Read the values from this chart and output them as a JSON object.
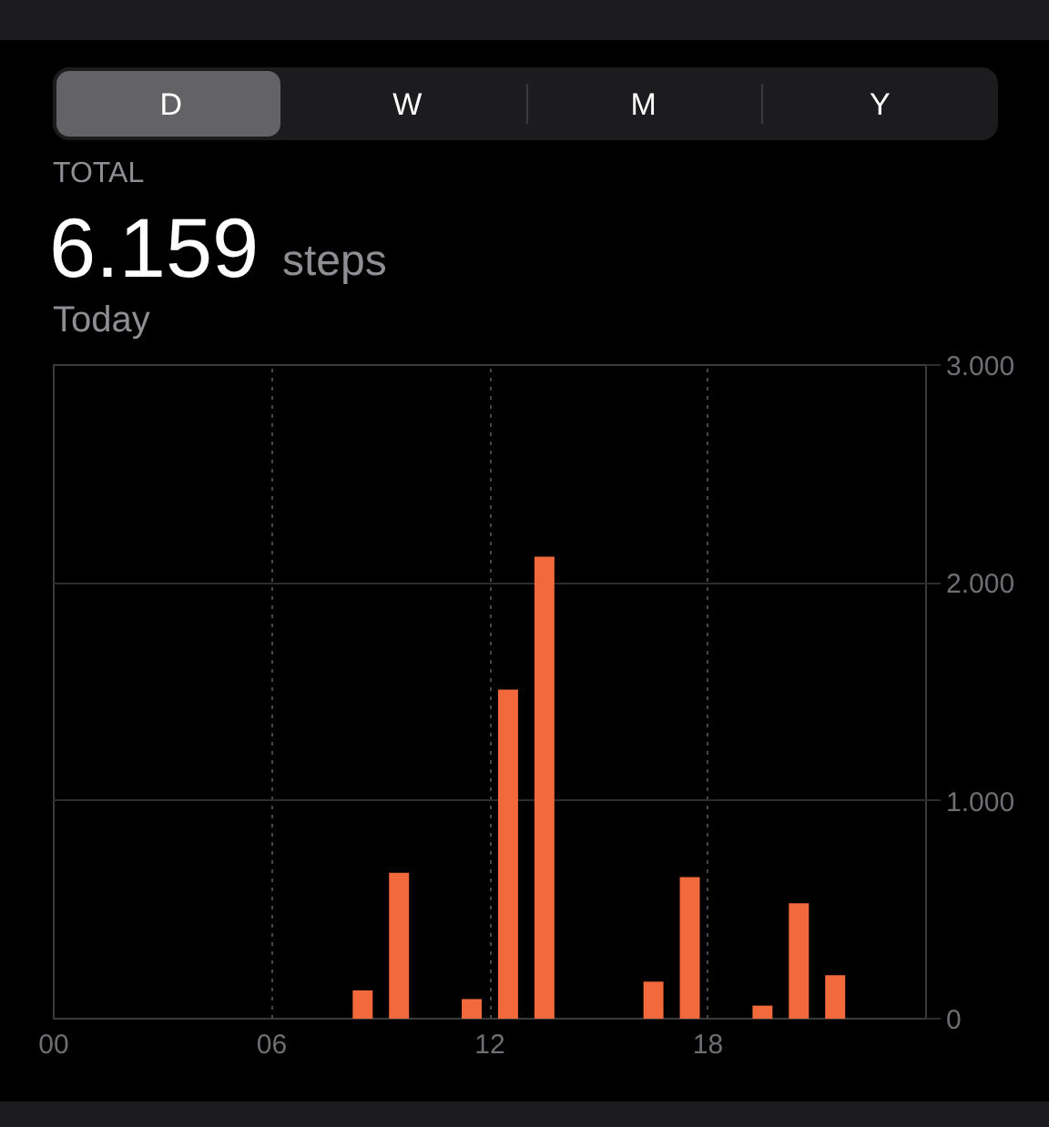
{
  "chart_data": {
    "type": "bar",
    "title": "6.159",
    "subtitle": "Today",
    "annotations": [
      "D",
      "W",
      "M",
      "Y",
      "TOTAL",
      "steps"
    ],
    "x": [
      8.5,
      9.5,
      11.5,
      12.5,
      13.5,
      16.5,
      17.5,
      19.5,
      20.5,
      21.5
    ],
    "values": [
      130,
      670,
      90,
      1510,
      2120,
      170,
      650,
      60,
      530,
      200
    ],
    "color": "#f26a3b",
    "xlim": [
      0,
      24
    ],
    "xticks": [
      {
        "value": 0,
        "label": "00"
      },
      {
        "value": 6,
        "label": "06"
      },
      {
        "value": 12,
        "label": "12"
      },
      {
        "value": 18,
        "label": "18"
      }
    ],
    "ylim": [
      0,
      3000
    ],
    "yticks": [
      0,
      {
        "value": 1000,
        "label": "1.000"
      },
      {
        "value": 2000,
        "label": "2.000"
      },
      {
        "value": 3000,
        "label": "3.000"
      }
    ],
    "grid": true
  }
}
